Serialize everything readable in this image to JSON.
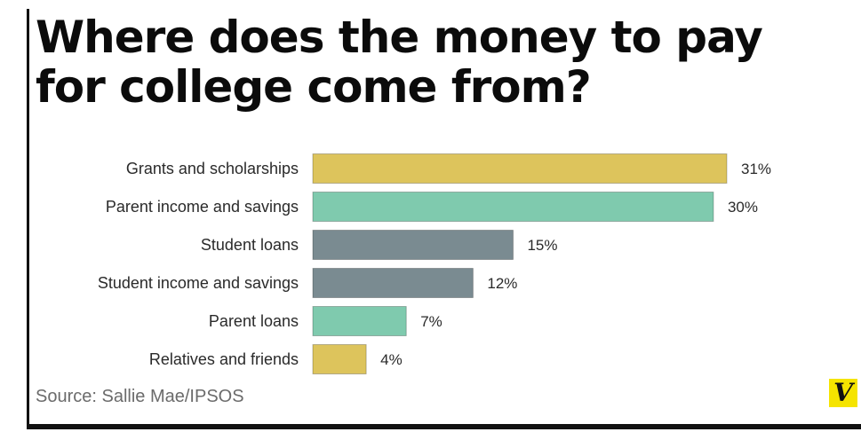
{
  "title": "Where does the money to pay for college come from?",
  "source": "Source: Sallie Mae/IPSOS",
  "logo": "V",
  "colors": {
    "gold": "#ddc45c",
    "teal": "#7fcaae",
    "slate": "#7a8b91",
    "logo_bg": "#f5e400"
  },
  "chart_data": {
    "type": "bar",
    "orientation": "horizontal",
    "categories": [
      "Grants and scholarships",
      "Parent income and savings",
      "Student loans",
      "Student income and savings",
      "Parent loans",
      "Relatives and friends"
    ],
    "values": [
      31,
      30,
      15,
      12,
      7,
      4
    ],
    "value_labels": [
      "31%",
      "30%",
      "15%",
      "12%",
      "7%",
      "4%"
    ],
    "bar_colors": [
      "#ddc45c",
      "#7fcaae",
      "#7a8b91",
      "#7a8b91",
      "#7fcaae",
      "#ddc45c"
    ],
    "unit": "%",
    "xlim": [
      0,
      31
    ],
    "grid": false,
    "legend": "none"
  }
}
